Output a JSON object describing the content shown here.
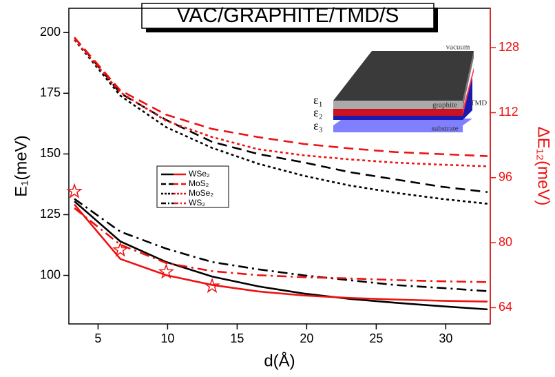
{
  "chart_data": {
    "type": "line",
    "title": "VAC/GRAPHITE/TMD/S",
    "x_label": "d(Å)",
    "y_label": "E₁(meV)",
    "y2_label": "ΔE₁₂(meV)",
    "x": [
      3.3,
      6.6,
      9.9,
      13.2,
      16.5,
      19.8,
      23.1,
      26.4,
      29.7,
      33
    ],
    "xlim": [
      2.9,
      33.2
    ],
    "xticks": [
      5,
      10,
      15,
      20,
      25,
      30
    ],
    "ylim": [
      80,
      210
    ],
    "yticks": [
      100,
      125,
      150,
      175,
      200
    ],
    "y2lim": [
      60,
      137.7
    ],
    "y2ticks": [
      64,
      80,
      96,
      112,
      128
    ],
    "y2_color": "#ee1111",
    "series": [
      {
        "name": "WSe₂",
        "color": "#000000",
        "dash": "solid",
        "values": [
          130.5,
          114,
          105.5,
          99.5,
          95.5,
          92.5,
          90.3,
          88.7,
          87.3,
          86
        ]
      },
      {
        "name": "WSe₂",
        "color": "#ee1111",
        "dash": "solid",
        "axis": "y2",
        "values": [
          89.4,
          76,
          72,
          69.6,
          68,
          67,
          66.4,
          66,
          65.7,
          65.5
        ]
      },
      {
        "name": "MoS₂",
        "color": "#000000",
        "dash": "dashed",
        "values": [
          198,
          175,
          164,
          155,
          150,
          146.5,
          142.5,
          139.5,
          136.5,
          134.3
        ]
      },
      {
        "name": "MoS₂",
        "color": "#ee1111",
        "dash": "dashed",
        "axis": "y2",
        "values": [
          130.5,
          117.5,
          111.5,
          108,
          106,
          104.3,
          103.2,
          102.3,
          101.8,
          101.3
        ]
      },
      {
        "name": "MoSe₂",
        "color": "#000000",
        "dash": "dotted",
        "values": [
          197,
          174,
          161,
          152.5,
          146,
          141,
          137,
          134,
          131.5,
          129.5
        ]
      },
      {
        "name": "MoSe₂",
        "color": "#ee1111",
        "dash": "dotted",
        "axis": "y2",
        "values": [
          130,
          117,
          110,
          106,
          103,
          101.5,
          100.5,
          99.7,
          99.2,
          98.8
        ]
      },
      {
        "name": "WS₂",
        "color": "#000000",
        "dash": "dashdot",
        "values": [
          131.5,
          118,
          111,
          105.5,
          102.5,
          100,
          98,
          96,
          94.8,
          93.5
        ]
      },
      {
        "name": "WS₂",
        "color": "#ee1111",
        "dash": "dashdot",
        "axis": "y2",
        "values": [
          88.5,
          79.5,
          75,
          73,
          72,
          71.5,
          71.2,
          70.8,
          70.5,
          70.3
        ]
      }
    ],
    "markers": {
      "x": [
        3.3,
        6.6,
        9.9,
        13.2
      ],
      "values": [
        92.6,
        78.2,
        72.8,
        69.3
      ],
      "color": "#ee1111",
      "axis": "y2"
    },
    "inset": {
      "vacuum": "vacuum",
      "graphite": "graphite",
      "tmd": "TMD",
      "substrate": "substrate",
      "eps1": "ε₁",
      "eps2": "ε₂",
      "eps3": "ε₃"
    }
  }
}
